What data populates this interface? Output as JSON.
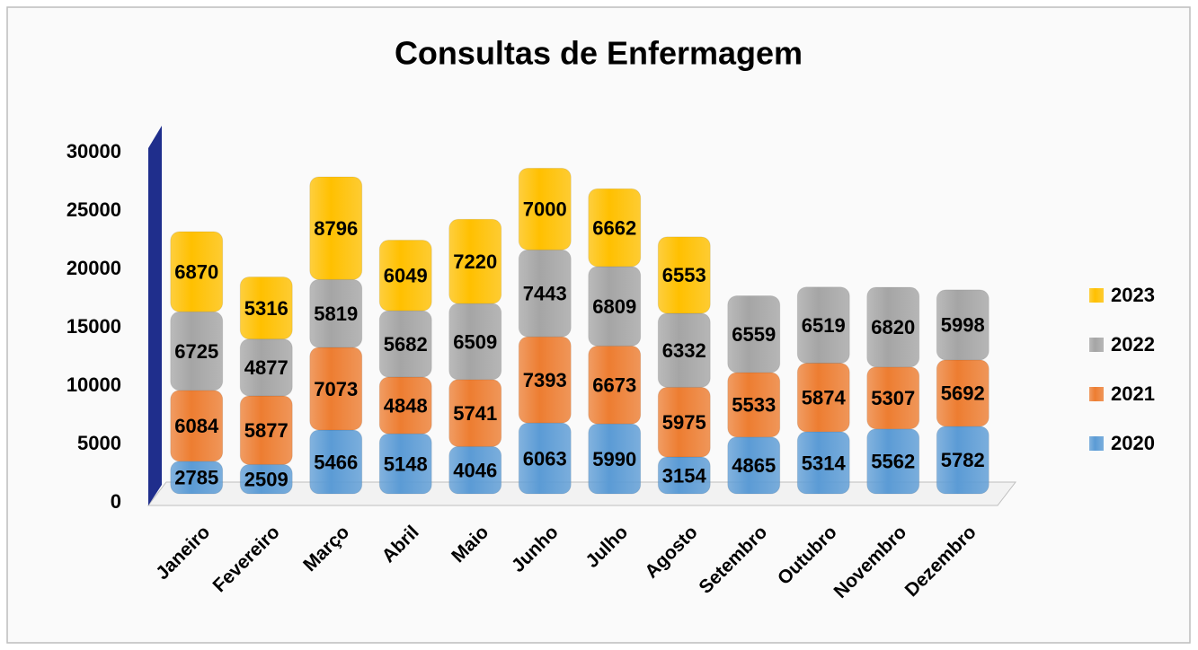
{
  "chart_data": {
    "type": "stacked_bar",
    "title": "Consultas de Enfermagem",
    "categories": [
      "Janeiro",
      "Fevereiro",
      "Março",
      "Abril",
      "Maio",
      "Junho",
      "Julho",
      "Agosto",
      "Setembro",
      "Outubro",
      "Novembro",
      "Dezembro"
    ],
    "series": [
      {
        "name": "2020",
        "color": "#5b9bd5",
        "values": [
          2785,
          2509,
          5466,
          5148,
          4046,
          6063,
          5990,
          3154,
          4865,
          5314,
          5562,
          5782
        ]
      },
      {
        "name": "2021",
        "color": "#ed7d31",
        "values": [
          6084,
          5877,
          7073,
          4848,
          5741,
          7393,
          6673,
          5975,
          5533,
          5874,
          5307,
          5692
        ]
      },
      {
        "name": "2022",
        "color": "#a5a5a5",
        "values": [
          6725,
          4877,
          5819,
          5682,
          6509,
          7443,
          6809,
          6332,
          6559,
          6519,
          6820,
          5998
        ]
      },
      {
        "name": "2023",
        "color": "#ffc000",
        "values": [
          6870,
          5316,
          8796,
          6049,
          7220,
          7000,
          6662,
          6553,
          null,
          null,
          null,
          null
        ]
      }
    ],
    "ylim": [
      0,
      30000
    ],
    "yticks": [
      0,
      5000,
      10000,
      15000,
      20000,
      25000,
      30000
    ],
    "legend": "right"
  }
}
